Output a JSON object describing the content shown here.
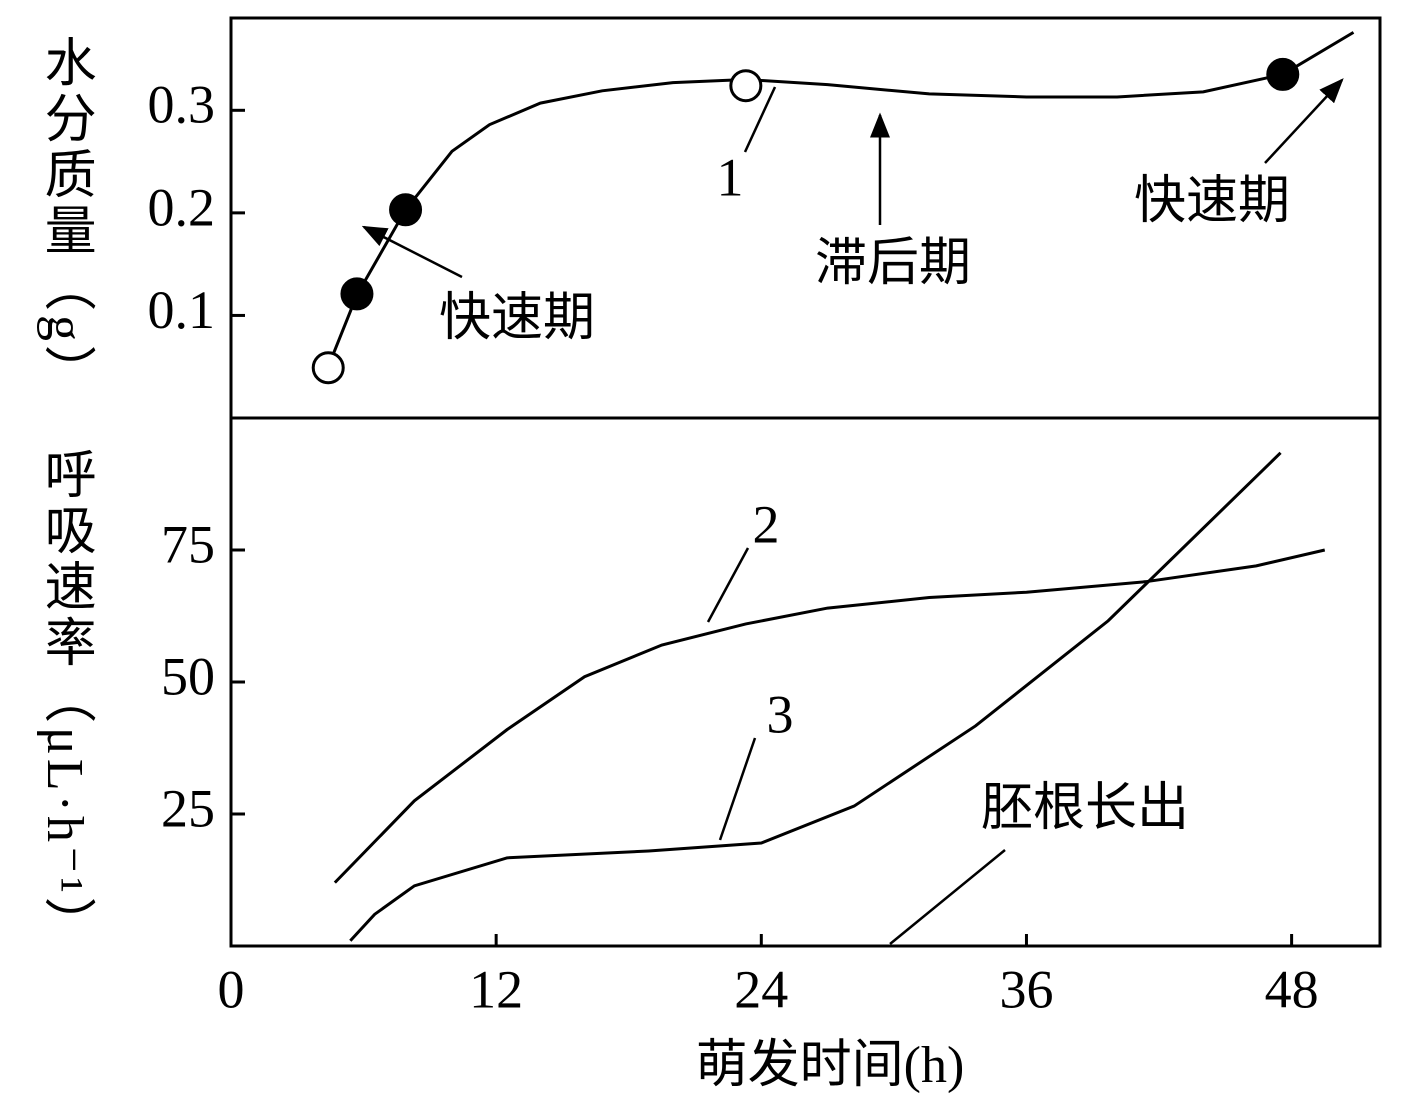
{
  "chart_data": [
    {
      "type": "line",
      "ylabel": "水分质量（g）",
      "ylim": [
        0,
        0.39
      ],
      "yticks": [
        0.1,
        0.2,
        0.3
      ],
      "color": "#000000",
      "series": [
        {
          "name": "1",
          "color": "#000000",
          "x": [
            4.4,
            5.7,
            7.9,
            10,
            11.7,
            14,
            16.8,
            20,
            23.3,
            27,
            31.6,
            36,
            40.1,
            44,
            47.6,
            50.8
          ],
          "values": [
            0.05,
            0.12,
            0.203,
            0.26,
            0.286,
            0.307,
            0.319,
            0.327,
            0.33,
            0.325,
            0.316,
            0.313,
            0.313,
            0.318,
            0.335,
            0.376
          ]
        }
      ],
      "markers": {
        "x": [
          4.4,
          5.7,
          7.9,
          23.3,
          47.6
        ],
        "values": [
          0.049,
          0.121,
          0.203,
          0.324,
          0.335
        ],
        "filled": [
          false,
          true,
          true,
          false,
          true
        ]
      },
      "annotations": [
        {
          "text": "快速期"
        },
        {
          "text": "滞后期"
        },
        {
          "text": "快速期"
        }
      ]
    },
    {
      "type": "line",
      "ylabel": "呼吸速率（μL·h⁻¹）",
      "xlabel": "萌发时间(h)",
      "xlim": [
        0,
        52
      ],
      "xticks": [
        0,
        12,
        24,
        36,
        48
      ],
      "ylim": [
        0,
        100
      ],
      "yticks": [
        25,
        50,
        75
      ],
      "series": [
        {
          "name": "2",
          "color": "#000000",
          "x": [
            4.7,
            8.3,
            12.5,
            16,
            19.5,
            23.3,
            27,
            31.6,
            36,
            41.4,
            46.4,
            49.5
          ],
          "values": [
            12,
            27.5,
            41,
            51,
            57,
            61,
            64,
            66,
            67,
            69,
            72,
            75
          ]
        },
        {
          "name": "3",
          "color": "#000000",
          "x": [
            5.4,
            6.5,
            8.3,
            12.5,
            18.9,
            24,
            28.2,
            33.7,
            39.7,
            47.5
          ],
          "values": [
            1,
            6,
            11.4,
            16.7,
            18,
            19.5,
            26.5,
            41.7,
            61.6,
            93.4
          ]
        }
      ],
      "annotations": [
        {
          "text": "胚根长出"
        }
      ]
    }
  ]
}
